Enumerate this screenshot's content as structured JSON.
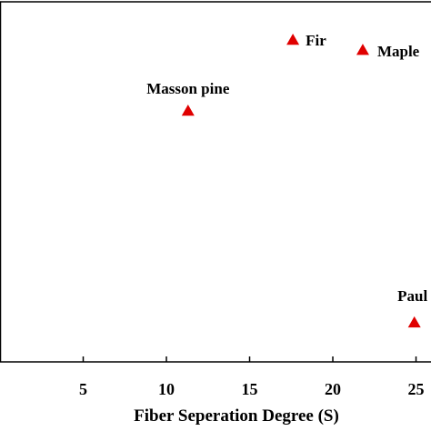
{
  "chart_data": {
    "type": "scatter",
    "x_label": "Fiber Seperation Degree (S)",
    "xlim": [
      0,
      25.9
    ],
    "xticks": [
      5,
      10,
      15,
      20,
      25
    ],
    "ylim": [
      0,
      100
    ],
    "color": "#e00000",
    "points": [
      {
        "label": "Fir",
        "x": 17.6,
        "y": 89.4
      },
      {
        "label": "Maple",
        "x": 21.8,
        "y": 86.6
      },
      {
        "label": "Masson pine",
        "x": 11.3,
        "y": 69.7
      },
      {
        "label": "Paul",
        "x": 24.9,
        "y": 10.9
      }
    ]
  }
}
